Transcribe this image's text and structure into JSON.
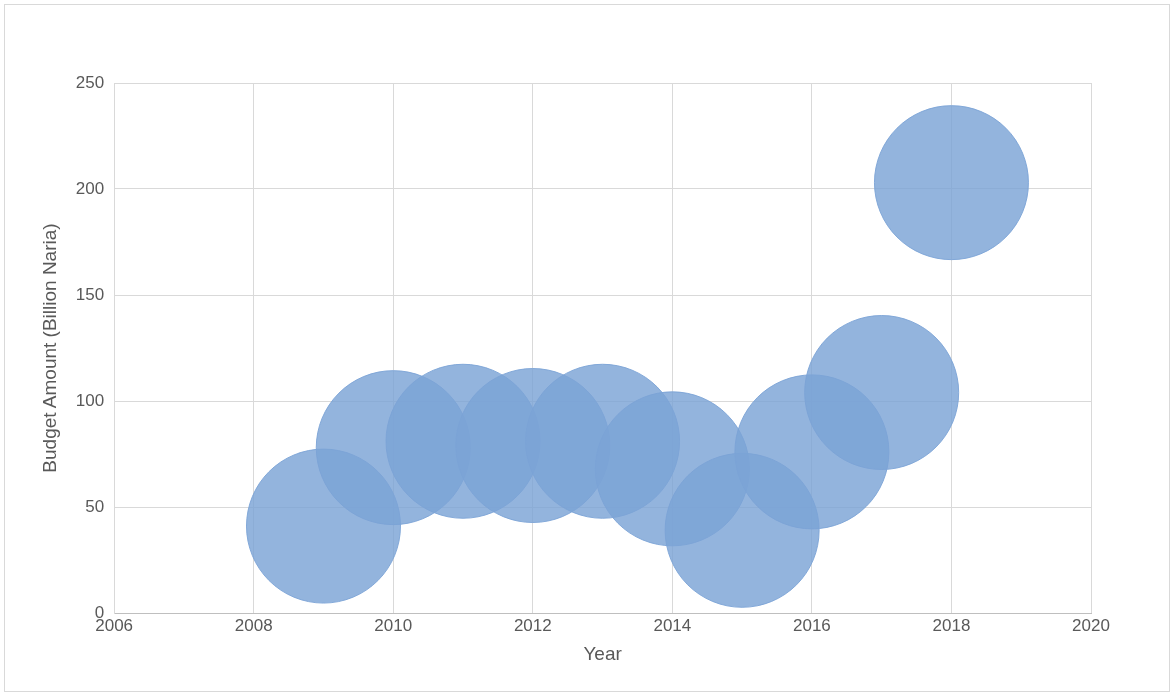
{
  "chart_data": {
    "type": "bubble",
    "xlabel": "Year",
    "ylabel": "Budget Amount (Billion Naria)",
    "x": [
      2009,
      2010,
      2011,
      2012,
      2013,
      2014,
      2015,
      2016,
      2017,
      2018
    ],
    "values": [
      41,
      78,
      81,
      79,
      81,
      68,
      39,
      76,
      104,
      203
    ],
    "sizes": [
      1,
      1,
      1,
      1,
      1,
      1,
      1,
      1,
      1,
      1
    ],
    "color": "#7ba3d6",
    "xlim": [
      2006,
      2020
    ],
    "xticks": [
      2006,
      2008,
      2010,
      2012,
      2014,
      2016,
      2018,
      2020
    ],
    "ylim": [
      0,
      250
    ],
    "yticks": [
      0,
      50,
      100,
      150,
      200,
      250
    ],
    "grid": true,
    "legend": false
  }
}
